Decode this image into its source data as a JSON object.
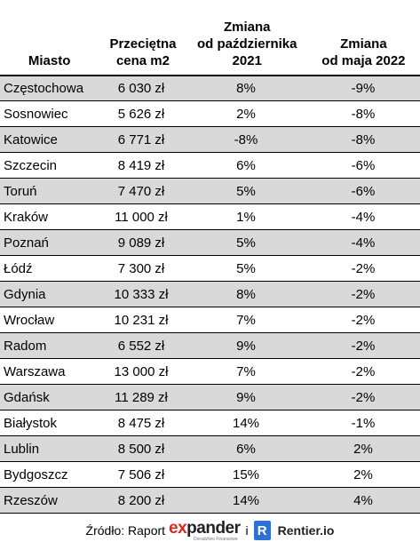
{
  "headers": {
    "city": "Miasto",
    "price": "Przeciętna\ncena m2",
    "change_oct": "Zmiana\nod października\n2021",
    "change_may": "Zmiana\nod maja 2022"
  },
  "rows": [
    {
      "city": "Częstochowa",
      "price": "6 030 zł",
      "change_oct": "8%",
      "change_may": "-9%"
    },
    {
      "city": "Sosnowiec",
      "price": "5 626 zł",
      "change_oct": "2%",
      "change_may": "-8%"
    },
    {
      "city": "Katowice",
      "price": "6 771 zł",
      "change_oct": "-8%",
      "change_may": "-8%"
    },
    {
      "city": "Szczecin",
      "price": "8 419 zł",
      "change_oct": "6%",
      "change_may": "-6%"
    },
    {
      "city": "Toruń",
      "price": "7 470 zł",
      "change_oct": "5%",
      "change_may": "-6%"
    },
    {
      "city": "Kraków",
      "price": "11 000 zł",
      "change_oct": "1%",
      "change_may": "-4%"
    },
    {
      "city": "Poznań",
      "price": "9 089 zł",
      "change_oct": "5%",
      "change_may": "-4%"
    },
    {
      "city": "Łódź",
      "price": "7 300 zł",
      "change_oct": "5%",
      "change_may": "-2%"
    },
    {
      "city": "Gdynia",
      "price": "10 333 zł",
      "change_oct": "8%",
      "change_may": "-2%"
    },
    {
      "city": "Wrocław",
      "price": "10 231 zł",
      "change_oct": "7%",
      "change_may": "-2%"
    },
    {
      "city": "Radom",
      "price": "6 552 zł",
      "change_oct": "9%",
      "change_may": "-2%"
    },
    {
      "city": "Warszawa",
      "price": "13 000 zł",
      "change_oct": "7%",
      "change_may": "-2%"
    },
    {
      "city": "Gdańsk",
      "price": "11 289 zł",
      "change_oct": "9%",
      "change_may": "-2%"
    },
    {
      "city": "Białystok",
      "price": "8 475 zł",
      "change_oct": "14%",
      "change_may": "-1%"
    },
    {
      "city": "Lublin",
      "price": "8 500 zł",
      "change_oct": "6%",
      "change_may": "2%"
    },
    {
      "city": "Bydgoszcz",
      "price": "7 506 zł",
      "change_oct": "15%",
      "change_may": "2%"
    },
    {
      "city": "Rzeszów",
      "price": "8 200 zł",
      "change_oct": "14%",
      "change_may": "4%"
    }
  ],
  "footer": {
    "source_label": "Źródło: Raport",
    "expander_prefix": "ex",
    "expander_rest": "pander",
    "expander_sub": "Doradztwo Finansowe",
    "conjunction": "i",
    "r_letter": "R",
    "rentier": "Rentier.io"
  },
  "colors": {
    "alt_row": "#d9d9d9",
    "expander_red": "#e1261c",
    "rentier_blue": "#2f6fd8"
  }
}
